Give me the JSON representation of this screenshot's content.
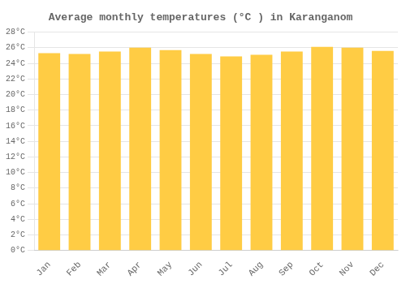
{
  "chart_data": {
    "type": "bar",
    "title": "Average monthly temperatures (°C ) in Karanganom",
    "categories": [
      "Jan",
      "Feb",
      "Mar",
      "Apr",
      "May",
      "Jun",
      "Jul",
      "Aug",
      "Sep",
      "Oct",
      "Nov",
      "Dec"
    ],
    "values": [
      25.3,
      25.2,
      25.5,
      26.0,
      25.7,
      25.2,
      24.9,
      25.1,
      25.5,
      26.1,
      26.0,
      25.6
    ],
    "color": "#FFCC44",
    "ylim": [
      0,
      28
    ],
    "yticks": [
      {
        "value": 0,
        "label": "0°C"
      },
      {
        "value": 2,
        "label": "2°C"
      },
      {
        "value": 4,
        "label": "4°C"
      },
      {
        "value": 6,
        "label": "6°C"
      },
      {
        "value": 8,
        "label": "8°C"
      },
      {
        "value": 10,
        "label": "10°C"
      },
      {
        "value": 12,
        "label": "12°C"
      },
      {
        "value": 14,
        "label": "14°C"
      },
      {
        "value": 16,
        "label": "16°C"
      },
      {
        "value": 18,
        "label": "18°C"
      },
      {
        "value": 20,
        "label": "20°C"
      },
      {
        "value": 22,
        "label": "22°C"
      },
      {
        "value": 24,
        "label": "24°C"
      },
      {
        "value": 26,
        "label": "26°C"
      },
      {
        "value": 28,
        "label": "28°C"
      }
    ],
    "grid": true
  }
}
